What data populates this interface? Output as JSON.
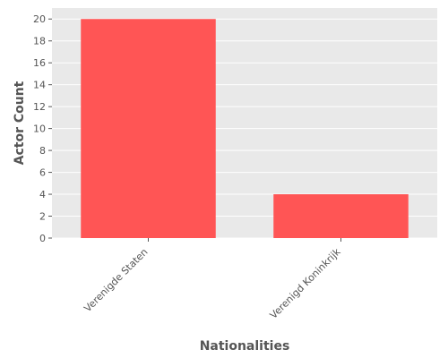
{
  "chart_data": {
    "type": "bar",
    "title": "",
    "xlabel": "Nationalities",
    "ylabel": "Actor Count",
    "categories": [
      "Verenigde Staten",
      "Verenigd Koninkrijk"
    ],
    "values": [
      20,
      4
    ],
    "ylim": [
      0,
      21
    ],
    "yticks": [
      0,
      2,
      4,
      6,
      8,
      10,
      12,
      14,
      16,
      18,
      20
    ],
    "grid": true,
    "legend": "none",
    "colors": {
      "bar": "#ff5555",
      "background": "#e9e9e9",
      "grid": "#ffffff",
      "text": "#555555"
    }
  }
}
